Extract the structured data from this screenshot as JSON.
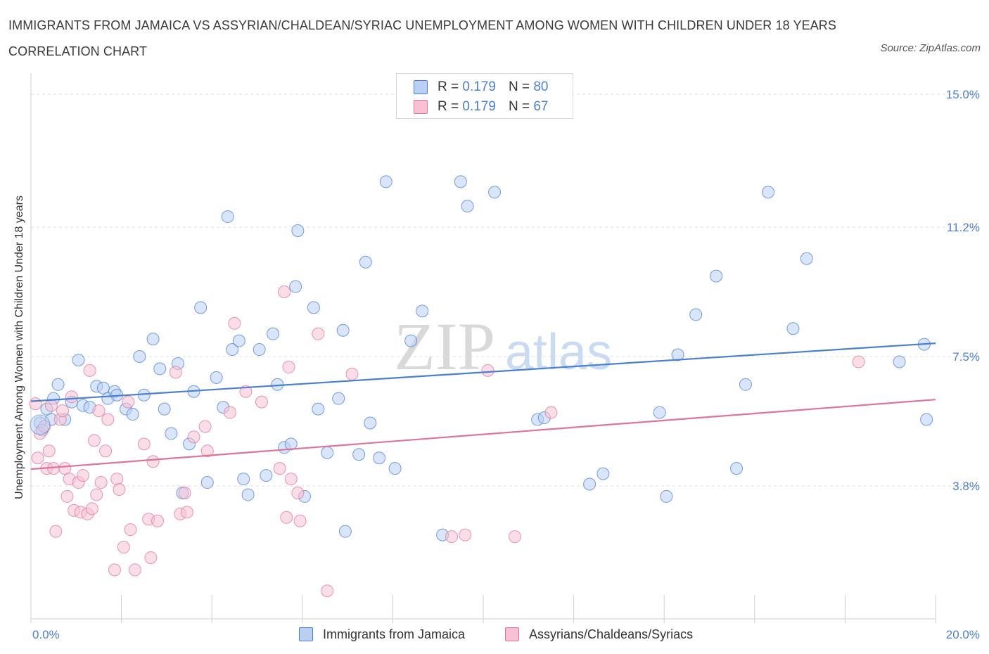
{
  "title": "IMMIGRANTS FROM JAMAICA VS ASSYRIAN/CHALDEAN/SYRIAC UNEMPLOYMENT AMONG WOMEN WITH CHILDREN UNDER 18 YEARS CORRELATION CHART",
  "source": "Source: ZipAtlas.com",
  "watermark": {
    "zip": "ZIP",
    "atlas": "atlas"
  },
  "legend": {
    "r_label": "R =",
    "n_label": "N =",
    "series": [
      {
        "r": "0.179",
        "n": "80"
      },
      {
        "r": "0.179",
        "n": "67"
      }
    ]
  },
  "bottom_legend": [
    "Immigrants from Jamaica",
    "Assyrians/Chaldeans/Syriacs"
  ],
  "chart_data": {
    "type": "scatter",
    "xlabel": "",
    "ylabel": "Unemployment Among Women with Children Under 18 years",
    "xlim": [
      0,
      20
    ],
    "ylim": [
      0,
      15
    ],
    "x_tick_labels": [
      {
        "value": 0,
        "label": "0.0%"
      },
      {
        "value": 20,
        "label": "20.0%"
      }
    ],
    "y_tick_labels": [
      {
        "value": 3.8,
        "label": "3.8%"
      },
      {
        "value": 7.5,
        "label": "7.5%"
      },
      {
        "value": 11.2,
        "label": "11.2%"
      },
      {
        "value": 15.0,
        "label": "15.0%"
      }
    ],
    "colors": {
      "blue": "#4a7fd4",
      "blue_fill": "#b9d0f2",
      "pink": "#e0739a",
      "pink_fill": "#f6c2d3",
      "grid": "#dcdcdc"
    },
    "series": [
      {
        "name": "Immigrants from Jamaica",
        "trend": {
          "x": [
            0,
            20
          ],
          "y": [
            6.22,
            7.88
          ]
        },
        "points": [
          {
            "x": 0.2,
            "y": 5.6
          },
          {
            "x": 0.25,
            "y": 5.4
          },
          {
            "x": 0.35,
            "y": 6.0
          },
          {
            "x": 0.45,
            "y": 5.7
          },
          {
            "x": 0.5,
            "y": 6.3
          },
          {
            "x": 0.6,
            "y": 6.7
          },
          {
            "x": 0.75,
            "y": 5.7
          },
          {
            "x": 0.9,
            "y": 6.2
          },
          {
            "x": 1.05,
            "y": 7.4
          },
          {
            "x": 1.15,
            "y": 6.1
          },
          {
            "x": 1.3,
            "y": 6.05
          },
          {
            "x": 1.45,
            "y": 6.65
          },
          {
            "x": 1.6,
            "y": 6.6
          },
          {
            "x": 1.7,
            "y": 6.3
          },
          {
            "x": 1.85,
            "y": 6.5
          },
          {
            "x": 1.9,
            "y": 6.4
          },
          {
            "x": 2.1,
            "y": 6.0
          },
          {
            "x": 2.25,
            "y": 5.85
          },
          {
            "x": 2.4,
            "y": 7.5
          },
          {
            "x": 2.5,
            "y": 6.4
          },
          {
            "x": 2.7,
            "y": 8.0
          },
          {
            "x": 2.85,
            "y": 7.15
          },
          {
            "x": 2.95,
            "y": 6.0
          },
          {
            "x": 3.1,
            "y": 5.3
          },
          {
            "x": 3.25,
            "y": 7.3
          },
          {
            "x": 3.35,
            "y": 3.6
          },
          {
            "x": 3.5,
            "y": 5.0
          },
          {
            "x": 3.6,
            "y": 6.5
          },
          {
            "x": 3.75,
            "y": 8.9
          },
          {
            "x": 3.9,
            "y": 3.9
          },
          {
            "x": 4.1,
            "y": 6.9
          },
          {
            "x": 4.25,
            "y": 6.05
          },
          {
            "x": 4.35,
            "y": 11.5
          },
          {
            "x": 4.45,
            "y": 7.7
          },
          {
            "x": 4.6,
            "y": 7.95
          },
          {
            "x": 4.7,
            "y": 4.0
          },
          {
            "x": 4.8,
            "y": 3.55
          },
          {
            "x": 5.05,
            "y": 7.7
          },
          {
            "x": 5.2,
            "y": 4.1
          },
          {
            "x": 5.35,
            "y": 8.15
          },
          {
            "x": 5.45,
            "y": 6.7
          },
          {
            "x": 5.6,
            "y": 4.9
          },
          {
            "x": 5.75,
            "y": 5.0
          },
          {
            "x": 5.85,
            "y": 9.5
          },
          {
            "x": 5.9,
            "y": 11.1
          },
          {
            "x": 6.05,
            "y": 3.5
          },
          {
            "x": 6.25,
            "y": 8.9
          },
          {
            "x": 6.35,
            "y": 6.0
          },
          {
            "x": 6.55,
            "y": 4.75
          },
          {
            "x": 6.8,
            "y": 6.3
          },
          {
            "x": 6.9,
            "y": 8.25
          },
          {
            "x": 6.95,
            "y": 2.5
          },
          {
            "x": 7.25,
            "y": 4.7
          },
          {
            "x": 7.4,
            "y": 10.2
          },
          {
            "x": 7.5,
            "y": 5.6
          },
          {
            "x": 7.7,
            "y": 4.6
          },
          {
            "x": 7.85,
            "y": 12.5
          },
          {
            "x": 8.05,
            "y": 4.3
          },
          {
            "x": 8.4,
            "y": 7.95
          },
          {
            "x": 8.65,
            "y": 8.8
          },
          {
            "x": 9.1,
            "y": 2.4
          },
          {
            "x": 9.5,
            "y": 12.5
          },
          {
            "x": 9.65,
            "y": 11.8
          },
          {
            "x": 10.25,
            "y": 12.2
          },
          {
            "x": 11.2,
            "y": 5.7
          },
          {
            "x": 11.35,
            "y": 5.75
          },
          {
            "x": 12.35,
            "y": 3.85
          },
          {
            "x": 12.65,
            "y": 4.15
          },
          {
            "x": 13.9,
            "y": 5.9
          },
          {
            "x": 14.05,
            "y": 3.5
          },
          {
            "x": 14.3,
            "y": 7.55
          },
          {
            "x": 14.7,
            "y": 8.7
          },
          {
            "x": 15.15,
            "y": 9.8
          },
          {
            "x": 15.6,
            "y": 4.3
          },
          {
            "x": 15.8,
            "y": 6.7
          },
          {
            "x": 16.3,
            "y": 12.2
          },
          {
            "x": 16.85,
            "y": 8.3
          },
          {
            "x": 17.15,
            "y": 10.3
          },
          {
            "x": 19.2,
            "y": 7.35
          },
          {
            "x": 19.8,
            "y": 5.7
          },
          {
            "x": 19.75,
            "y": 7.85
          }
        ]
      },
      {
        "name": "Assyrians/Chaldeans/Syriacs",
        "trend": {
          "x": [
            0,
            20
          ],
          "y": [
            4.28,
            6.27
          ]
        },
        "points": [
          {
            "x": 0.1,
            "y": 6.15
          },
          {
            "x": 0.15,
            "y": 4.6
          },
          {
            "x": 0.2,
            "y": 5.3
          },
          {
            "x": 0.3,
            "y": 5.5
          },
          {
            "x": 0.35,
            "y": 4.3
          },
          {
            "x": 0.4,
            "y": 4.8
          },
          {
            "x": 0.45,
            "y": 6.1
          },
          {
            "x": 0.5,
            "y": 4.3
          },
          {
            "x": 0.55,
            "y": 2.5
          },
          {
            "x": 0.65,
            "y": 5.7
          },
          {
            "x": 0.7,
            "y": 5.95
          },
          {
            "x": 0.75,
            "y": 4.3
          },
          {
            "x": 0.8,
            "y": 3.5
          },
          {
            "x": 0.85,
            "y": 4.0
          },
          {
            "x": 0.9,
            "y": 6.35
          },
          {
            "x": 0.95,
            "y": 3.1
          },
          {
            "x": 1.05,
            "y": 3.9
          },
          {
            "x": 1.1,
            "y": 3.05
          },
          {
            "x": 1.15,
            "y": 4.1
          },
          {
            "x": 1.25,
            "y": 3.0
          },
          {
            "x": 1.3,
            "y": 7.1
          },
          {
            "x": 1.35,
            "y": 3.15
          },
          {
            "x": 1.4,
            "y": 5.1
          },
          {
            "x": 1.45,
            "y": 3.55
          },
          {
            "x": 1.5,
            "y": 5.95
          },
          {
            "x": 1.55,
            "y": 3.9
          },
          {
            "x": 1.65,
            "y": 4.8
          },
          {
            "x": 1.7,
            "y": 5.7
          },
          {
            "x": 1.85,
            "y": 1.4
          },
          {
            "x": 1.9,
            "y": 4.0
          },
          {
            "x": 1.95,
            "y": 3.7
          },
          {
            "x": 2.05,
            "y": 2.05
          },
          {
            "x": 2.15,
            "y": 6.2
          },
          {
            "x": 2.2,
            "y": 2.55
          },
          {
            "x": 2.3,
            "y": 1.4
          },
          {
            "x": 2.5,
            "y": 5.0
          },
          {
            "x": 2.6,
            "y": 2.85
          },
          {
            "x": 2.65,
            "y": 1.75
          },
          {
            "x": 2.7,
            "y": 4.5
          },
          {
            "x": 2.8,
            "y": 2.8
          },
          {
            "x": 3.2,
            "y": 7.05
          },
          {
            "x": 3.3,
            "y": 3.0
          },
          {
            "x": 3.4,
            "y": 3.6
          },
          {
            "x": 3.45,
            "y": 3.05
          },
          {
            "x": 3.6,
            "y": 5.2
          },
          {
            "x": 3.85,
            "y": 5.5
          },
          {
            "x": 3.9,
            "y": 4.8
          },
          {
            "x": 4.4,
            "y": 5.9
          },
          {
            "x": 4.5,
            "y": 8.45
          },
          {
            "x": 4.75,
            "y": 6.5
          },
          {
            "x": 5.1,
            "y": 6.2
          },
          {
            "x": 5.5,
            "y": 4.3
          },
          {
            "x": 5.6,
            "y": 9.35
          },
          {
            "x": 5.65,
            "y": 2.9
          },
          {
            "x": 5.7,
            "y": 7.2
          },
          {
            "x": 5.75,
            "y": 4.0
          },
          {
            "x": 5.9,
            "y": 3.6
          },
          {
            "x": 5.95,
            "y": 2.8
          },
          {
            "x": 6.35,
            "y": 8.15
          },
          {
            "x": 6.55,
            "y": 0.8
          },
          {
            "x": 7.1,
            "y": 7.0
          },
          {
            "x": 9.3,
            "y": 2.35
          },
          {
            "x": 9.6,
            "y": 2.4
          },
          {
            "x": 10.1,
            "y": 7.1
          },
          {
            "x": 10.7,
            "y": 2.35
          },
          {
            "x": 11.5,
            "y": 5.9
          },
          {
            "x": 18.3,
            "y": 7.35
          }
        ]
      }
    ]
  }
}
